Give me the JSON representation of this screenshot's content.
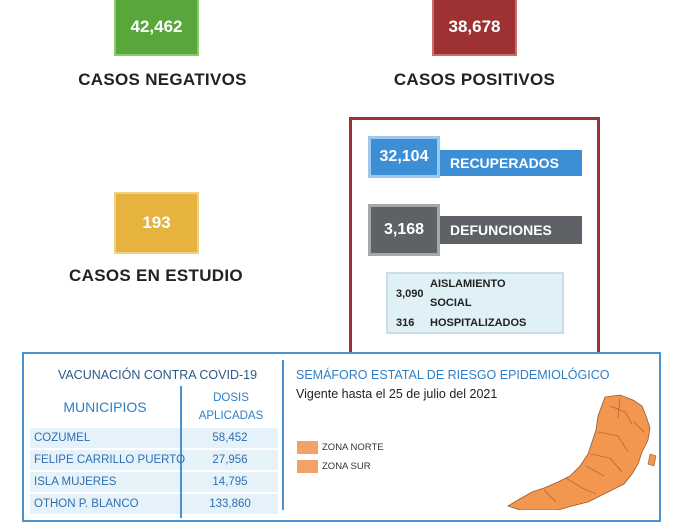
{
  "summary": {
    "negativos": {
      "value": "42,462",
      "label": "CASOS NEGATIVOS",
      "color": "#59a63a"
    },
    "positivos": {
      "value": "38,678",
      "label": "CASOS POSITIVOS",
      "color": "#9e3232"
    },
    "estudio": {
      "value": "193",
      "label": "CASOS EN ESTUDIO",
      "color": "#e5b33e"
    }
  },
  "positivos_breakdown": {
    "recuperados": {
      "value": "32,104",
      "label": "RECUPERADOS",
      "color": "#3d8fd5"
    },
    "defunciones": {
      "value": "3,168",
      "label": "DEFUNCIONES",
      "color": "#5e6266"
    },
    "aislamiento": {
      "value": "3,090",
      "label_line1": "AISLAMIENTO",
      "label_line2": "SOCIAL"
    },
    "hospitalizados": {
      "value": "316",
      "label": "HOSPITALIZADOS"
    }
  },
  "vacunacion": {
    "title": "VACUNACIÓN CONTRA COVID-19",
    "col_municipios": "MUNICIPIOS",
    "col_dosis_line1": "DOSIS",
    "col_dosis_line2": "APLICADAS",
    "rows": [
      {
        "municipio": "COZUMEL",
        "dosis": "58,452"
      },
      {
        "municipio": "FELIPE CARRILLO PUERTO",
        "dosis": "27,956"
      },
      {
        "municipio": "ISLA MUJERES",
        "dosis": "14,795"
      },
      {
        "municipio": "OTHON P. BLANCO",
        "dosis": "133,860"
      }
    ]
  },
  "semaforo": {
    "title": "SEMÁFORO ESTATAL DE RIESGO EPIDEMIOLÓGICO",
    "vigencia": "Vigente hasta el 25 de julio del 2021",
    "legend": [
      {
        "label": "ZONA NORTE",
        "color": "#f2a16b"
      },
      {
        "label": "ZONA SUR",
        "color": "#f2a16b"
      }
    ],
    "map_color": "#f39650"
  }
}
